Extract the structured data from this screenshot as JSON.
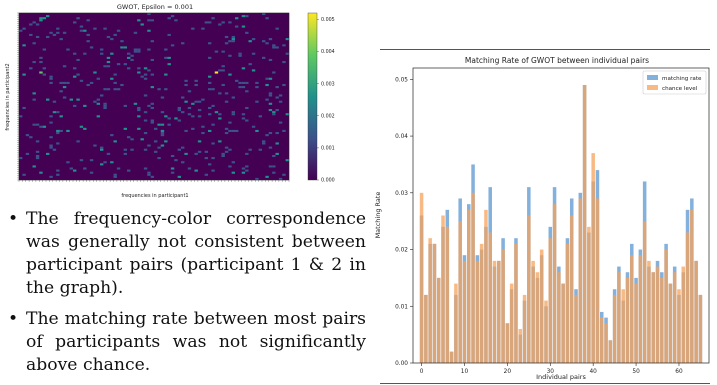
{
  "heatmap_panel": {
    "title": "GWOT, Epsilon = 0.001",
    "xlabel": "frequencies in participant1",
    "ylabel": "frequencies in participant2",
    "colorbar_ticks": [
      "0.000",
      "0.001",
      "0.002",
      "0.003",
      "0.004",
      "0.005"
    ],
    "colormap": [
      "#440154",
      "#3b528b",
      "#21918c",
      "#5ec962",
      "#fde725"
    ]
  },
  "bullets": [
    "The frequency-color correspondence was generally not consistent between participant pairs (participant 1 & 2 in the graph).",
    "The matching rate between most pairs of participants was not significantly above chance."
  ],
  "bullet_symbol": "•",
  "colors": {
    "matching_rate": "#6fa3d6",
    "chance_level": "#f5a35c"
  },
  "chart_data": {
    "type": "bar",
    "title": "Matching Rate of GWOT between individual pairs",
    "xlabel": "Individual pairs",
    "ylabel": "Matching Rate",
    "xlim": [
      -2,
      67
    ],
    "ylim": [
      0,
      0.052
    ],
    "xticks": [
      0,
      10,
      20,
      30,
      40,
      50,
      60
    ],
    "yticks": [
      0.0,
      0.01,
      0.02,
      0.03,
      0.04,
      0.05
    ],
    "ytick_labels": [
      "0.00",
      "0.01",
      "0.02",
      "0.03",
      "0.04",
      "0.05"
    ],
    "legend_position": "top-right",
    "x": [
      0,
      1,
      2,
      3,
      4,
      5,
      6,
      7,
      8,
      9,
      10,
      11,
      12,
      13,
      14,
      15,
      16,
      17,
      18,
      19,
      20,
      21,
      22,
      23,
      24,
      25,
      26,
      27,
      28,
      29,
      30,
      31,
      32,
      33,
      34,
      35,
      36,
      37,
      38,
      39,
      40,
      41,
      42,
      43,
      44,
      45,
      46,
      47,
      48,
      49,
      50,
      51,
      52,
      53,
      54,
      55,
      56,
      57,
      58,
      59,
      60,
      61,
      62,
      63,
      64,
      65
    ],
    "series": [
      {
        "name": "matching rate",
        "values": [
          0.026,
          0.012,
          0.021,
          0.021,
          0.015,
          0.024,
          0.027,
          0.002,
          0.012,
          0.029,
          0.019,
          0.028,
          0.035,
          0.019,
          0.02,
          0.024,
          0.031,
          0.017,
          0.018,
          0.022,
          0.007,
          0.013,
          0.022,
          0.005,
          0.011,
          0.031,
          0.017,
          0.015,
          0.019,
          0.01,
          0.024,
          0.031,
          0.017,
          0.014,
          0.022,
          0.029,
          0.013,
          0.03,
          0.049,
          0.023,
          0.032,
          0.034,
          0.009,
          0.008,
          0.004,
          0.013,
          0.017,
          0.011,
          0.016,
          0.021,
          0.015,
          0.02,
          0.032,
          0.017,
          0.016,
          0.018,
          0.016,
          0.021,
          0.014,
          0.017,
          0.012,
          0.016,
          0.027,
          0.029,
          0.018,
          0.012
        ]
      },
      {
        "name": "chance level",
        "values": [
          0.03,
          0.012,
          0.022,
          0.021,
          0.015,
          0.026,
          0.024,
          0.002,
          0.014,
          0.025,
          0.018,
          0.027,
          0.03,
          0.018,
          0.021,
          0.027,
          0.023,
          0.018,
          0.018,
          0.02,
          0.007,
          0.014,
          0.021,
          0.006,
          0.012,
          0.026,
          0.018,
          0.016,
          0.02,
          0.011,
          0.022,
          0.028,
          0.016,
          0.014,
          0.021,
          0.026,
          0.012,
          0.029,
          0.049,
          0.024,
          0.037,
          0.029,
          0.008,
          0.007,
          0.004,
          0.012,
          0.016,
          0.013,
          0.015,
          0.019,
          0.014,
          0.019,
          0.025,
          0.018,
          0.016,
          0.017,
          0.015,
          0.02,
          0.014,
          0.016,
          0.013,
          0.017,
          0.023,
          0.027,
          0.018,
          0.012
        ]
      }
    ]
  }
}
